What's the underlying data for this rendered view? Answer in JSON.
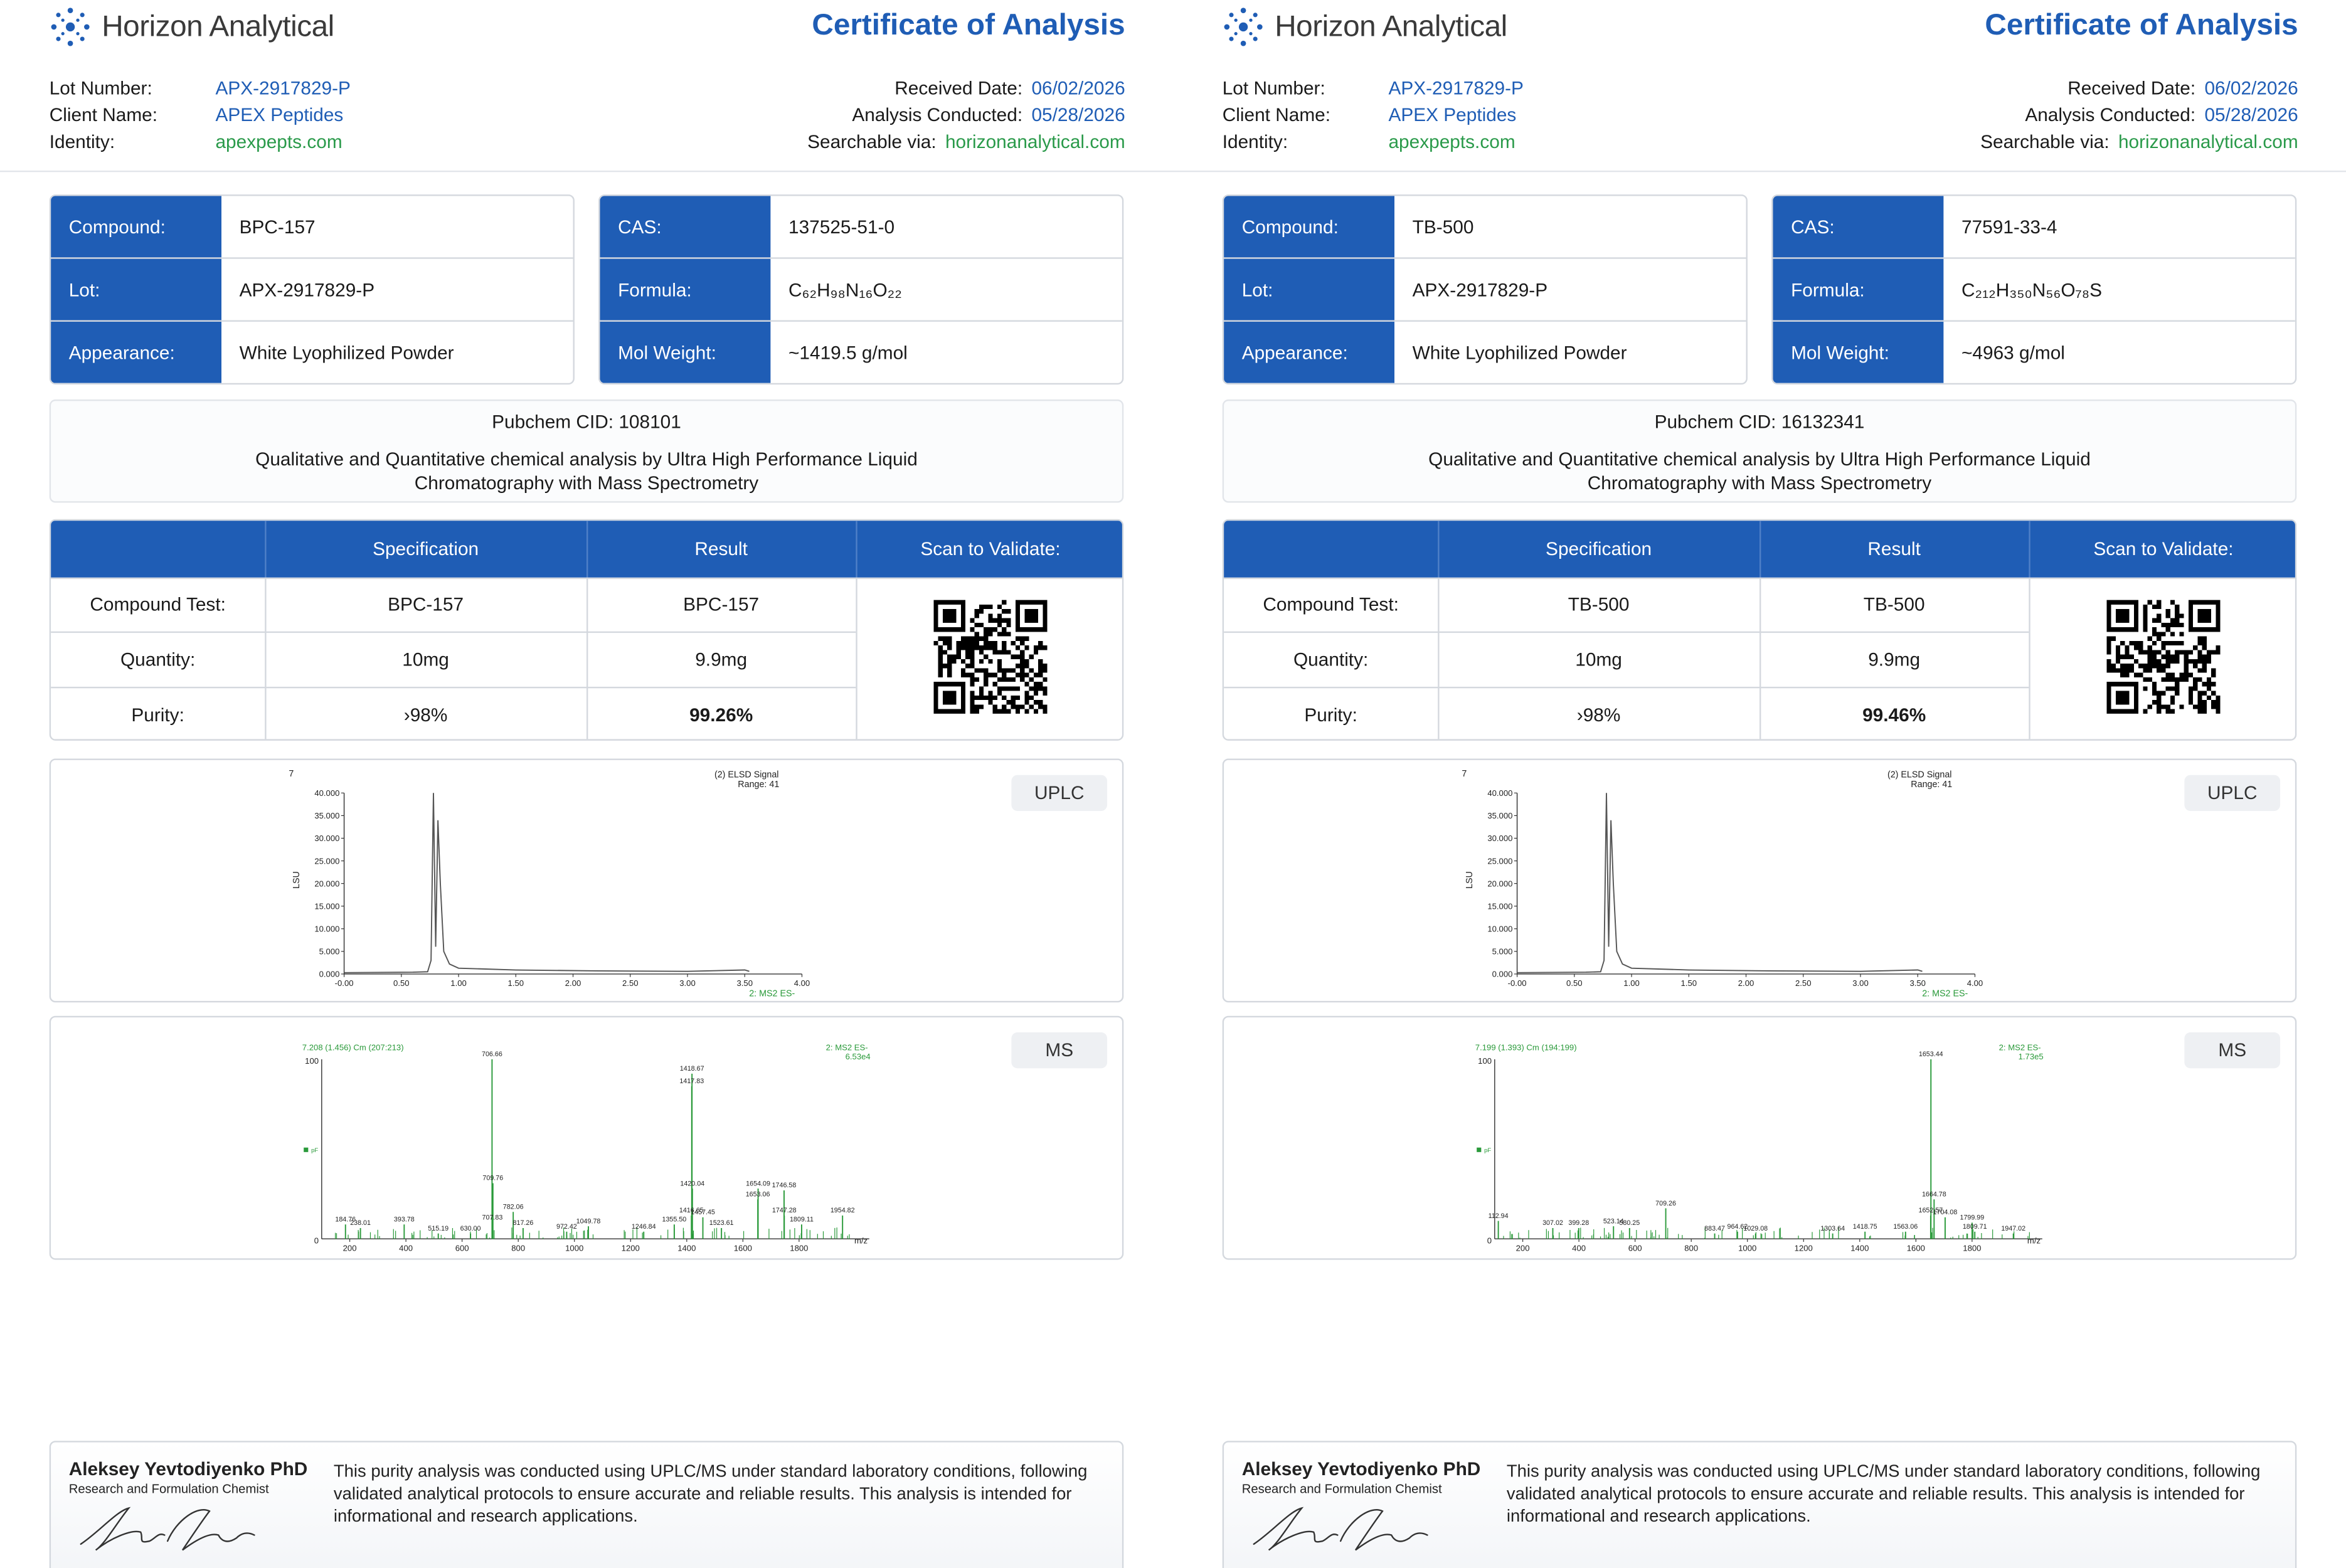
{
  "colors": {
    "accent": "#1f5db5",
    "link_green": "#2a9a4a",
    "uplc_trace": "#555555",
    "ms_trace": "#2a9a3a"
  },
  "certificates": [
    {
      "brand": "Horizon Analytical",
      "title": "Certificate of Analysis",
      "meta_left": [
        {
          "label": "Lot Number:",
          "value": "APX-2917829-P"
        },
        {
          "label": "Client Name:",
          "value": "APEX Peptides"
        },
        {
          "label": "Identity:",
          "value": "apexpepts.com"
        }
      ],
      "meta_right": [
        {
          "label": "Received Date:",
          "value": "06/02/2026"
        },
        {
          "label": "Analysis Conducted:",
          "value": "05/28/2026"
        },
        {
          "label": "Searchable via:",
          "value": "horizonanalytical.com"
        }
      ],
      "spec_left": [
        {
          "label": "Compound:",
          "value": "BPC-157"
        },
        {
          "label": "Lot:",
          "value": "APX-2917829-P"
        },
        {
          "label": "Appearance:",
          "value": "White Lyophilized Powder"
        }
      ],
      "spec_right": [
        {
          "label": "CAS:",
          "value": "137525-51-0"
        },
        {
          "label": "Formula:",
          "value": "C₆₂H₉₈N₁₆O₂₂"
        },
        {
          "label": "Mol Weight:",
          "value": "~1419.5 g/mol"
        }
      ],
      "pubchem": "Pubchem CID: 108101",
      "method": "Qualitative and Quantitative chemical analysis by Ultra High Performance Liquid Chromatography with Mass Spectrometry",
      "results": {
        "headers": [
          "Specification",
          "Result",
          "Scan to Validate:"
        ],
        "rows": [
          {
            "label": "Compound Test:",
            "spec": "BPC-157",
            "result": "BPC-157"
          },
          {
            "label": "Quantity:",
            "spec": "10mg",
            "result": "9.9mg"
          },
          {
            "label": "Purity:",
            "spec": "›98%",
            "result": "99.26%"
          }
        ]
      },
      "uplc": {
        "tag": "UPLC",
        "signal_label": "(2) ELSD Signal",
        "range_label": "Range: 41",
        "y_axis_label": "LSU",
        "y_ticks": [
          "40.000",
          "35.000",
          "30.000",
          "25.000",
          "20.000",
          "15.000",
          "10.000",
          "5.000",
          "0.000"
        ],
        "x_ticks": [
          "-0.00",
          "0.50",
          "1.00",
          "1.50",
          "2.00",
          "2.50",
          "3.00",
          "3.50",
          "4.00"
        ],
        "corner_label": "7",
        "footer_label": "2: MS2 ES-"
      },
      "ms": {
        "tag": "MS",
        "scan_label": "7.208 (1.456) Cm (207:213)",
        "channel_label": "2: MS2 ES-",
        "intensity_label": "6.53e4",
        "y_top": "100",
        "y_zero": "0",
        "x_ticks": [
          "200",
          "400",
          "600",
          "800",
          "1000",
          "1200",
          "1400",
          "1600",
          "1800"
        ],
        "x_unit": "m/z",
        "peak_labels": [
          "706.66",
          "1418.67",
          "1417.83",
          "709.76",
          "1420.04",
          "1654.09",
          "1746.58",
          "1653.06",
          "782.06",
          "1416.65",
          "1457.45",
          "1747.28",
          "1954.82",
          "184.76",
          "238.01",
          "393.78",
          "707.83",
          "817.26",
          "1049.78",
          "1355.50",
          "1523.61",
          "1809.11",
          "515.19",
          "630.00",
          "972.42",
          "1246.84"
        ]
      },
      "analyst_name": "Aleksey Yevtodiyenko PhD",
      "analyst_role": "Research and Formulation Chemist",
      "footer_note": "This purity analysis was conducted using UPLC/MS under standard laboratory conditions, following validated analytical protocols to ensure accurate and reliable results. This analysis is intended for informational and research applications."
    },
    {
      "brand": "Horizon Analytical",
      "title": "Certificate of Analysis",
      "meta_left": [
        {
          "label": "Lot Number:",
          "value": "APX-2917829-P"
        },
        {
          "label": "Client Name:",
          "value": "APEX Peptides"
        },
        {
          "label": "Identity:",
          "value": "apexpepts.com"
        }
      ],
      "meta_right": [
        {
          "label": "Received Date:",
          "value": "06/02/2026"
        },
        {
          "label": "Analysis Conducted:",
          "value": "05/28/2026"
        },
        {
          "label": "Searchable via:",
          "value": "horizonanalytical.com"
        }
      ],
      "spec_left": [
        {
          "label": "Compound:",
          "value": "TB-500"
        },
        {
          "label": "Lot:",
          "value": "APX-2917829-P"
        },
        {
          "label": "Appearance:",
          "value": "White Lyophilized Powder"
        }
      ],
      "spec_right": [
        {
          "label": "CAS:",
          "value": "77591-33-4"
        },
        {
          "label": "Formula:",
          "value": "C₂₁₂H₃₅₀N₅₆O₇₈S"
        },
        {
          "label": "Mol Weight:",
          "value": "~4963 g/mol"
        }
      ],
      "pubchem": "Pubchem CID: 16132341",
      "method": "Qualitative and Quantitative chemical analysis by Ultra High Performance Liquid Chromatography with Mass Spectrometry",
      "results": {
        "headers": [
          "Specification",
          "Result",
          "Scan to Validate:"
        ],
        "rows": [
          {
            "label": "Compound Test:",
            "spec": "TB-500",
            "result": "TB-500"
          },
          {
            "label": "Quantity:",
            "spec": "10mg",
            "result": "9.9mg"
          },
          {
            "label": "Purity:",
            "spec": "›98%",
            "result": "99.46%"
          }
        ]
      },
      "uplc": {
        "tag": "UPLC",
        "signal_label": "(2) ELSD Signal",
        "range_label": "Range: 41",
        "y_axis_label": "LSU",
        "y_ticks": [
          "40.000",
          "35.000",
          "30.000",
          "25.000",
          "20.000",
          "15.000",
          "10.000",
          "5.000",
          "0.000"
        ],
        "x_ticks": [
          "-0.00",
          "0.50",
          "1.00",
          "1.50",
          "2.00",
          "2.50",
          "3.00",
          "3.50",
          "4.00"
        ],
        "corner_label": "7",
        "footer_label": "2: MS2 ES-"
      },
      "ms": {
        "tag": "MS",
        "scan_label": "7.199 (1.393) Cm (194:199)",
        "channel_label": "2: MS2 ES-",
        "intensity_label": "1.73e5",
        "y_top": "100",
        "y_zero": "0",
        "x_ticks": [
          "200",
          "400",
          "600",
          "800",
          "1000",
          "1200",
          "1400",
          "1600",
          "1800"
        ],
        "x_unit": "m/z",
        "peak_labels": [
          "1653.44",
          "1664.78",
          "709.26",
          "1652.57",
          "1704.08",
          "1799.99",
          "112.94",
          "307.02",
          "399.28",
          "523.14",
          "580.25",
          "883.47",
          "964.62",
          "1029.08",
          "1303.64",
          "1418.75",
          "1563.06",
          "1809.71",
          "1947.02"
        ]
      },
      "analyst_name": "Aleksey Yevtodiyenko PhD",
      "analyst_role": "Research and Formulation Chemist",
      "footer_note": "This purity analysis was conducted using UPLC/MS under standard laboratory conditions, following validated analytical protocols to ensure accurate and reliable results. This analysis is intended for informational and research applications."
    }
  ]
}
